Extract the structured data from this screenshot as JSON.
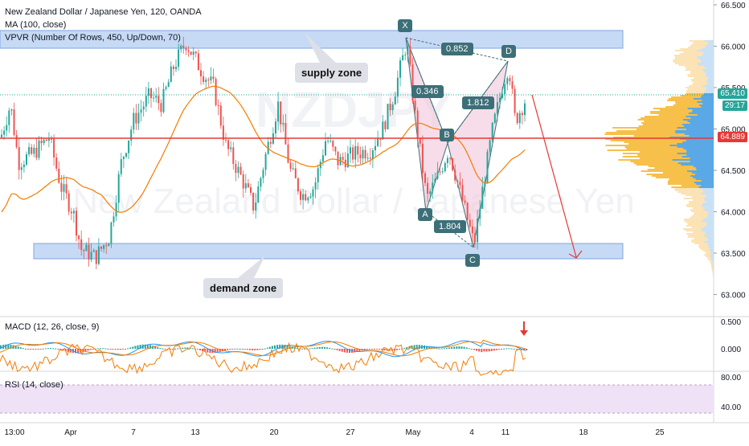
{
  "header": {
    "symbol_line": "New Zealand Dollar / Japanese Yen, 120, OANDA",
    "ma_line": "MA (100, close)",
    "vpvr_line": "VPVR (Number Of Rows, 450, Up/Down, 70)"
  },
  "watermark": {
    "ticker": "NZDJPY",
    "name": "New Zealand Dollar / Japanese Yen"
  },
  "annotations": {
    "supply_zone": "supply zone",
    "demand_zone": "demand zone",
    "points": {
      "X": "X",
      "A": "A",
      "B": "B",
      "C": "C",
      "D": "D"
    },
    "ratios": {
      "xb": "0.346",
      "xd": "0.852",
      "ac": "1.804",
      "bd": "1.812"
    }
  },
  "price_axis": {
    "ticks": [
      "66.500",
      "66.000",
      "65.500",
      "65.000",
      "64.500",
      "64.000",
      "63.500",
      "63.000"
    ],
    "current_price": "65.410",
    "countdown": "29:17",
    "ma_value": "64.889"
  },
  "macd": {
    "title": "MACD (12, 26, close, 9)",
    "ticks": [
      "0.500",
      "0.000"
    ]
  },
  "rsi": {
    "title": "RSI (14, close)",
    "ticks": [
      "80.00",
      "40.00"
    ]
  },
  "time_axis": {
    "labels": [
      "13:00",
      "Apr",
      "7",
      "13",
      "20",
      "27",
      "May",
      "4",
      "11",
      "18",
      "25"
    ]
  },
  "colors": {
    "bull": "#26a69a",
    "bear": "#ef5350",
    "ma": "#f57c00",
    "red_line": "#e53935",
    "zone": "#b3cdf2",
    "pattern": "#f2c6da",
    "vp_up": "#f7c04a",
    "vp_down": "#5aa9e6",
    "tag": "#3d6f78",
    "rsi_band": "#efe2f7"
  },
  "chart_data": {
    "type": "candlestick",
    "title": "New Zealand Dollar / Japanese Yen, 120, OANDA",
    "ylim": [
      62.85,
      66.6
    ],
    "yticks": [
      66.5,
      66.0,
      65.5,
      65.0,
      64.5,
      64.0,
      63.5,
      63.0
    ],
    "current_price": 65.41,
    "ma100_last": 64.889,
    "supply_zone": [
      66.0,
      66.2
    ],
    "demand_zone": [
      63.45,
      63.63
    ],
    "pattern_points": [
      {
        "name": "X",
        "price": 66.08
      },
      {
        "name": "A",
        "price": 64.12
      },
      {
        "name": "B",
        "price": 64.77
      },
      {
        "name": "C",
        "price": 63.58
      },
      {
        "name": "D",
        "price": 65.8
      }
    ],
    "pattern_ratios": {
      "XB": 0.346,
      "XD": 0.852,
      "AC": 1.804,
      "BD": 1.812
    },
    "projection_target": 63.47,
    "macd_range": [
      -0.25,
      0.55
    ],
    "rsi_range": [
      20,
      90
    ],
    "rsi_bands": [
      70,
      30
    ]
  }
}
